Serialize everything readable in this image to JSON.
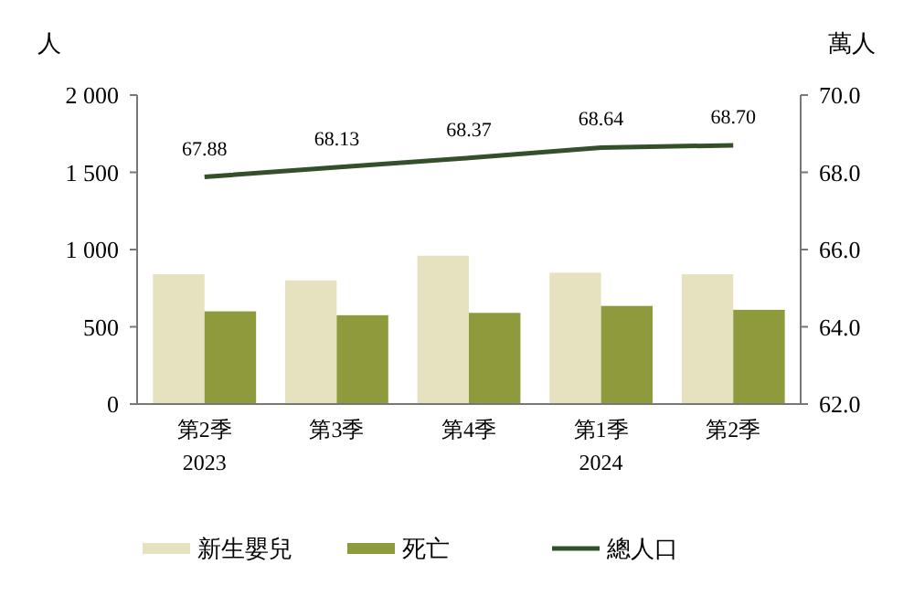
{
  "chart_data": {
    "type": "bar",
    "ylabel": "人",
    "y2label": "萬人",
    "categories": [
      "第2季\n2023",
      "第3季",
      "第4季",
      "第1季\n2024",
      "第2季"
    ],
    "series": [
      {
        "name": "新生嬰兒",
        "color": "#e6e2bf",
        "values": [
          840,
          800,
          960,
          850,
          840
        ]
      },
      {
        "name": "死亡",
        "color": "#8f9a3c",
        "values": [
          600,
          575,
          590,
          635,
          610
        ]
      },
      {
        "name": "總人口",
        "type": "line",
        "axis": "y2",
        "color": "#34502a",
        "values": [
          67.88,
          68.13,
          68.37,
          68.64,
          68.7
        ],
        "value_labels": [
          "67.88",
          "68.13",
          "68.37",
          "68.64",
          "68.70"
        ]
      }
    ],
    "ylim": [
      0,
      2000
    ],
    "yticks": [
      0,
      500,
      {
        "value": 1000,
        "label": "1 000"
      },
      {
        "value": 1500,
        "label": "1 500"
      },
      {
        "value": 2000,
        "label": "2 000"
      }
    ],
    "y2lim": [
      62,
      70
    ],
    "y2ticks": [
      {
        "value": 62,
        "label": "62.0"
      },
      {
        "value": 64,
        "label": "64.0"
      },
      {
        "value": 66,
        "label": "66.0"
      },
      {
        "value": 68,
        "label": "68.0"
      },
      {
        "value": 70,
        "label": "70.0"
      }
    ],
    "legend": "bottom",
    "marker": "none"
  }
}
